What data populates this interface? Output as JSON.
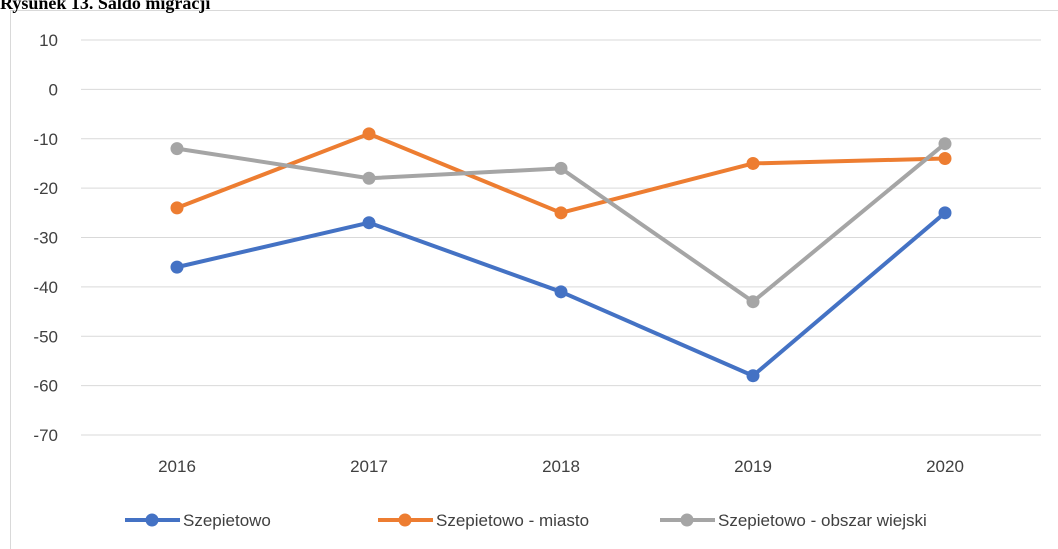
{
  "chart_data": {
    "type": "line",
    "title": "Rysunek 13. Saldo migracji",
    "categories": [
      "2016",
      "2017",
      "2018",
      "2019",
      "2020"
    ],
    "series": [
      {
        "name": "Szepietowo",
        "color": "#4472c4",
        "values": [
          -36,
          -27,
          -41,
          -58,
          -25
        ]
      },
      {
        "name": "Szepietowo - miasto",
        "color": "#ed7d31",
        "values": [
          -24,
          -9,
          -25,
          -15,
          -14
        ]
      },
      {
        "name": "Szepietowo - obszar wiejski",
        "color": "#a5a5a5",
        "values": [
          -12,
          -18,
          -16,
          -43,
          -11
        ]
      }
    ],
    "ylim": [
      -70,
      10
    ],
    "yticks": [
      -70,
      -60,
      -50,
      -40,
      -30,
      -20,
      -10,
      0,
      10
    ],
    "grid": true,
    "legend": "bottom"
  }
}
